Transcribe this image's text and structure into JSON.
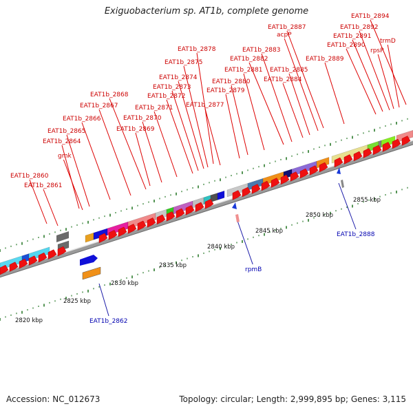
{
  "title": "Exiguobacterium sp. AT1b, complete genome",
  "footer": {
    "accession": "Accession: NC_012673",
    "topology": "Topology: circular; Length: 2,999,895 bp; Genes: 3,115"
  },
  "colors": {
    "label_red": "#cc0000",
    "label_blue": "#0000b0",
    "tick_green": "#007700",
    "cds_red": "#ee1111",
    "backbone_grey": "#888888"
  },
  "kbp_ticks": [
    "2820 kbp",
    "2825 kbp",
    "2830 kbp",
    "2835 kbp",
    "2840 kbp",
    "2845 kbp",
    "2850 kbp",
    "2855 kbp"
  ],
  "labels_top": [
    "EAT1b_2860",
    "EAT1b_2861",
    "gmk",
    "EAT1b_2864",
    "EAT1b_2865",
    "EAT1b_2866",
    "EAT1b_2867",
    "EAT1b_2868",
    "EAT1b_2869",
    "EAT1b_2870",
    "EAT1b_2871",
    "EAT1b_2872",
    "EAT1b_2873",
    "EAT1b_2874",
    "EAT1b_2875",
    "EAT1b_2877",
    "EAT1b_2878",
    "EAT1b_2879",
    "EAT1b_2880",
    "EAT1b_2881",
    "EAT1b_2882",
    "EAT1b_2883",
    "EAT1b_2884",
    "EAT1b_2885",
    "acpP",
    "EAT1b_2887",
    "EAT1b_2889",
    "EAT1b_2890",
    "EAT1b_2891",
    "EAT1b_2892",
    "rpsP",
    "trmD",
    "EAT1b_2894"
  ],
  "labels_bottom": [
    "EAT1b_2862",
    "rpmB",
    "EAT1b_2888"
  ]
}
